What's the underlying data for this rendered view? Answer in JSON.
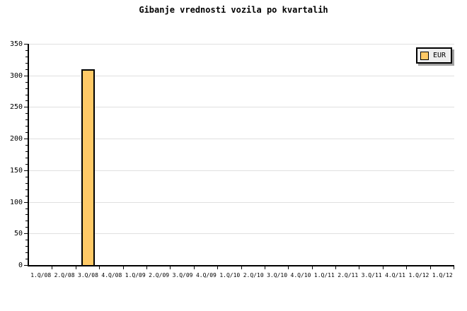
{
  "chart_data": {
    "type": "bar",
    "title": "Gibanje vrednosti vozila po kvartalih",
    "categories": [
      "1.Q/08",
      "2.Q/08",
      "3.Q/08",
      "4.Q/08",
      "1.Q/09",
      "2.Q/09",
      "3.Q/09",
      "4.Q/09",
      "1.Q/10",
      "2.Q/10",
      "3.Q/10",
      "4.Q/10",
      "1.Q/11",
      "2.Q/11",
      "3.Q/11",
      "4.Q/11",
      "1.Q/12",
      "1.Q/12"
    ],
    "series": [
      {
        "name": "EUR",
        "color": "#FFC966",
        "values": [
          null,
          null,
          310,
          null,
          null,
          null,
          null,
          null,
          null,
          null,
          null,
          null,
          null,
          null,
          null,
          null,
          null,
          null
        ]
      }
    ],
    "xlabel": "",
    "ylabel": "",
    "ylim": [
      0,
      350
    ],
    "y_major_step": 50,
    "y_minor_step": 10,
    "grid": true,
    "gridline_color": "#E0E0E0",
    "axis_color": "#000000",
    "background_color": "#FFFFFF",
    "legend": {
      "position": "top-right",
      "label": "EUR",
      "swatch_color": "#FFC966",
      "background": "#EEEEEE",
      "border_color": "#000000",
      "shadow_color": "#A0A0A0"
    }
  }
}
